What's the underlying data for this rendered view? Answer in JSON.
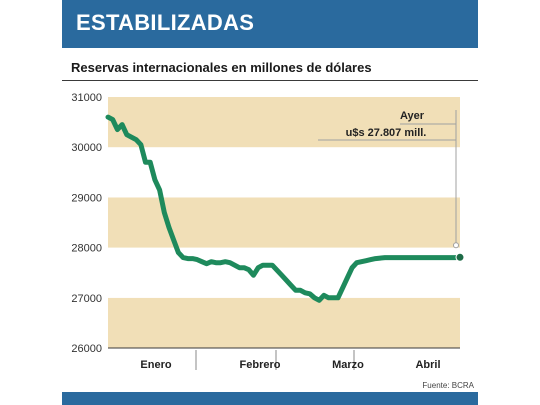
{
  "header": {
    "title": "ESTABILIZADAS"
  },
  "subtitle": "Reservas internacionales en millones de dólares",
  "source": "Fuente: BCRA",
  "colors": {
    "header_bg": "#2a6a9e",
    "band": "#f1dfb7",
    "line": "#1e8a5c",
    "annotation_line": "#a0a0a0"
  },
  "annotation": {
    "label": "Ayer",
    "value_text": "u$s 27.807 mill."
  },
  "chart_data": {
    "type": "line",
    "title": "Reservas internacionales en millones de dólares",
    "xlabel": "",
    "ylabel": "",
    "ylim": [
      26000,
      31000
    ],
    "yticks": [
      26000,
      27000,
      28000,
      29000,
      30000,
      31000
    ],
    "ytick_labels": [
      "26000",
      "27000",
      "28000",
      "29000",
      "30000",
      "31000"
    ],
    "month_labels": [
      "Enero",
      "Febrero",
      "Marzo",
      "Abril"
    ],
    "grid": "alternating horizontal bands",
    "series": [
      {
        "x": [
          0,
          1,
          2,
          3,
          4,
          5,
          6,
          7,
          8,
          9,
          10,
          11,
          12,
          13,
          14,
          15,
          16,
          17,
          18,
          19,
          20,
          21,
          22,
          23,
          24,
          25,
          26,
          27,
          28,
          29,
          30,
          31,
          32,
          33,
          34,
          35,
          36,
          37,
          38,
          39,
          40,
          41,
          42,
          43,
          44,
          45,
          46,
          47,
          48,
          49,
          50,
          51,
          52,
          53,
          54,
          55,
          56,
          57,
          58,
          59,
          60,
          61,
          62,
          63,
          64,
          65,
          66,
          67,
          68,
          69,
          70,
          71,
          72,
          73,
          74,
          75
        ],
        "values": [
          30600,
          30550,
          30350,
          30450,
          30250,
          30200,
          30150,
          30050,
          29700,
          29700,
          29350,
          29150,
          28700,
          28400,
          28150,
          27900,
          27800,
          27780,
          27780,
          27760,
          27720,
          27680,
          27720,
          27700,
          27700,
          27720,
          27700,
          27650,
          27600,
          27600,
          27560,
          27450,
          27600,
          27650,
          27650,
          27650,
          27550,
          27450,
          27350,
          27250,
          27150,
          27150,
          27100,
          27080,
          27000,
          26950,
          27050,
          27000,
          27000,
          27000,
          27200,
          27400,
          27600,
          27700,
          27720,
          27740,
          27760,
          27780,
          27790,
          27800,
          27800,
          27800,
          27800,
          27800,
          27800,
          27800,
          27800,
          27800,
          27800,
          27800,
          27800,
          27800,
          27800,
          27800,
          27800,
          27807
        ]
      }
    ]
  }
}
